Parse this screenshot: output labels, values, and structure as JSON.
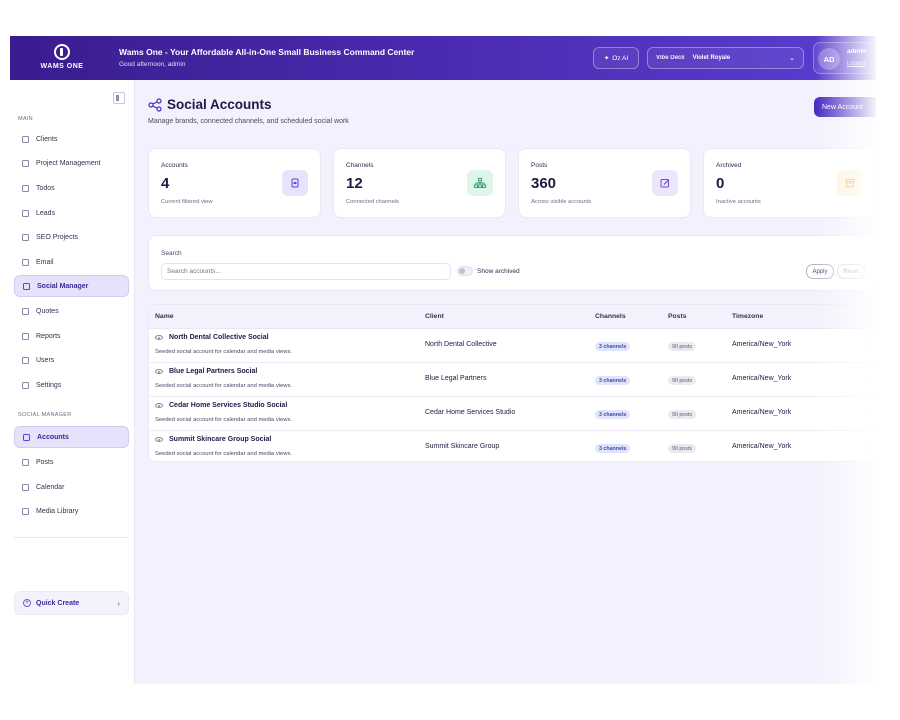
{
  "header": {
    "logo_text": "WAMS ONE",
    "app_title": "Wams One - Your Affordable All-in-One Small Business Command Center",
    "greeting": "Good afternoon, admin",
    "ai_button": "Oz AI",
    "vibe_label": "Vibe Deck",
    "vibe_value": "Violet Royale",
    "avatar_initials": "AD",
    "user_name": "admin",
    "logout": "Logout"
  },
  "sidebar": {
    "main_label": "MAIN",
    "main_items": [
      {
        "label": "Clients",
        "icon": "users-icon"
      },
      {
        "label": "Project Management",
        "icon": "kanban-icon"
      },
      {
        "label": "Todos",
        "icon": "checklist-icon"
      },
      {
        "label": "Leads",
        "icon": "funnel-icon"
      },
      {
        "label": "SEO Projects",
        "icon": "trend-icon"
      },
      {
        "label": "Email",
        "icon": "mail-icon"
      },
      {
        "label": "Social Manager",
        "icon": "share-icon",
        "active": true
      },
      {
        "label": "Quotes",
        "icon": "document-icon"
      },
      {
        "label": "Reports",
        "icon": "bar-chart-icon"
      },
      {
        "label": "Users",
        "icon": "user-group-icon"
      },
      {
        "label": "Settings",
        "icon": "gear-icon"
      }
    ],
    "social_label": "SOCIAL MANAGER",
    "social_items": [
      {
        "label": "Accounts",
        "icon": "id-card-icon",
        "active": true
      },
      {
        "label": "Posts",
        "icon": "edit-icon"
      },
      {
        "label": "Calendar",
        "icon": "calendar-icon"
      },
      {
        "label": "Media Library",
        "icon": "image-icon"
      }
    ],
    "quick_create": "Quick Create"
  },
  "page": {
    "title": "Social Accounts",
    "subtitle": "Manage brands, connected channels, and scheduled social work",
    "new_button": "New Account"
  },
  "stats": [
    {
      "label": "Accounts",
      "value": "4",
      "sub": "Current filtered view",
      "icon": "id-card-icon",
      "icon_bg": "#e7e3fb",
      "icon_color": "#5a45d0"
    },
    {
      "label": "Channels",
      "value": "12",
      "sub": "Connected channels",
      "icon": "network-icon",
      "icon_bg": "#def5ea",
      "icon_color": "#22a06b"
    },
    {
      "label": "Posts",
      "value": "360",
      "sub": "Across visible accounts",
      "icon": "edit-icon",
      "icon_bg": "#ece6fb",
      "icon_color": "#6a4bd6"
    },
    {
      "label": "Archived",
      "value": "0",
      "sub": "Inactive accounts",
      "icon": "archive-icon",
      "icon_bg": "#fdf0dc",
      "icon_color": "#e0a040"
    }
  ],
  "filter": {
    "label": "Search",
    "placeholder": "Search accounts...",
    "toggle_label": "Show archived",
    "apply": "Apply",
    "reset": "Reset"
  },
  "table": {
    "columns": [
      "Name",
      "Client",
      "Channels",
      "Posts",
      "Timezone"
    ],
    "rows": [
      {
        "name": "North Dental Collective Social",
        "desc": "Seeded social account for calendar and media views.",
        "client": "North Dental Collective",
        "channels": "3 channels",
        "posts": "90 posts",
        "timezone": "America/New_York"
      },
      {
        "name": "Blue Legal Partners Social",
        "desc": "Seeded social account for calendar and media views.",
        "client": "Blue Legal Partners",
        "channels": "3 channels",
        "posts": "90 posts",
        "timezone": "America/New_York"
      },
      {
        "name": "Cedar Home Services Studio Social",
        "desc": "Seeded social account for calendar and media views.",
        "client": "Cedar Home Services Studio",
        "channels": "3 channels",
        "posts": "90 posts",
        "timezone": "America/New_York"
      },
      {
        "name": "Summit Skincare Group Social",
        "desc": "Seeded social account for calendar and media views.",
        "client": "Summit Skincare Group",
        "channels": "3 channels",
        "posts": "90 posts",
        "timezone": "America/New_York"
      }
    ]
  }
}
